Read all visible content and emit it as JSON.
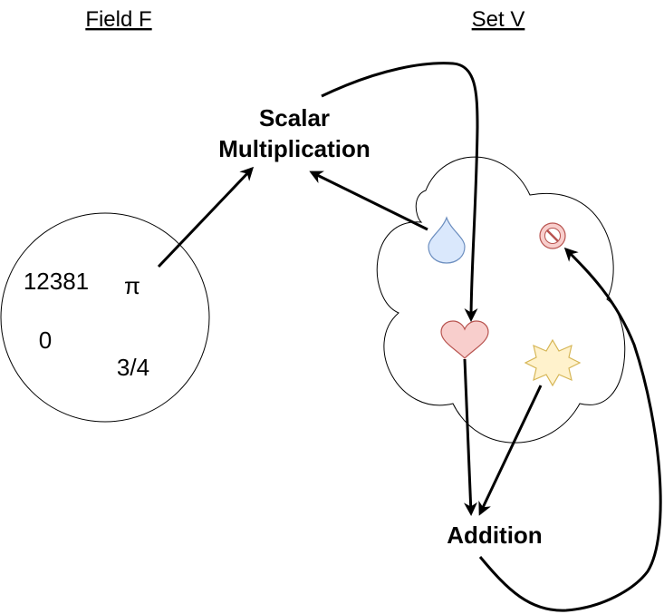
{
  "titles": {
    "field": "Field F",
    "set": "Set V"
  },
  "operations": {
    "scalar_line1": "Scalar",
    "scalar_line2": "Multiplication",
    "addition": "Addition"
  },
  "field_elements": [
    "12381",
    "π",
    "0",
    "3/4"
  ],
  "set_elements": [
    {
      "icon": "drop-icon",
      "fill": "#dae8fc",
      "stroke": "#6c8ebf"
    },
    {
      "icon": "no-entry-icon",
      "fill": "#f8cecc",
      "stroke": "#b85450"
    },
    {
      "icon": "heart-icon",
      "fill": "#f8cecc",
      "stroke": "#b85450"
    },
    {
      "icon": "star-burst-icon",
      "fill": "#fff2cc",
      "stroke": "#d6b656"
    }
  ]
}
